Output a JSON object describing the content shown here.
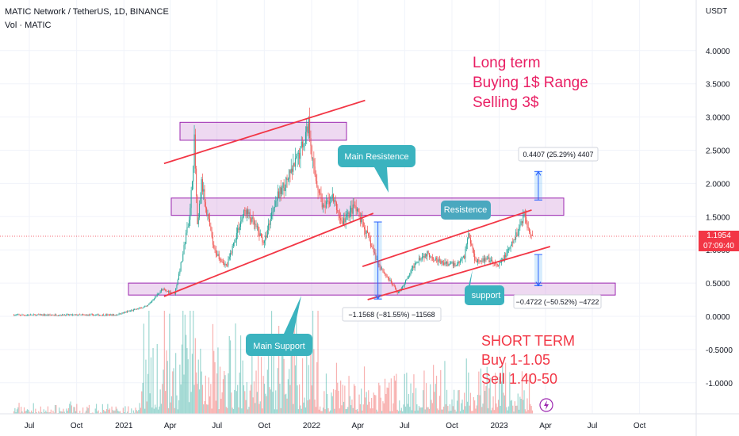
{
  "header": {
    "title": "MATIC Network / TetherUS, 1D, BINANCE",
    "indicator": "Vol · MATIC"
  },
  "price_axis": {
    "currency": "USDT",
    "last_price": "1.1954",
    "countdown": "07:09:40",
    "up_color": "#26a69a",
    "down_color": "#ef5350",
    "accent_color": "#f23645"
  },
  "annotations": {
    "long_term": [
      "Long term",
      "Buying 1$ Range",
      "Selling 3$"
    ],
    "short_term": [
      "SHORT  TERM",
      "Buy 1-1.05",
      "Sell 1.40-50"
    ],
    "main_resistence": "Main Resistence",
    "resistence": "Resistence",
    "support": "support",
    "main_support": "Main Support",
    "measure_up": "0.4407 (25.29%) 4407",
    "measure_down": "−0.4722 (−50.52%) −4722",
    "measure_drop": "−1.1568 (−81.55%) −11568"
  },
  "chart_data": {
    "type": "candlestick",
    "symbol": "MATIC/USDT",
    "timeframe": "1D",
    "exchange": "BINANCE",
    "x_tick_labels": [
      "Jul",
      "Oct",
      "2021",
      "Apr",
      "Jul",
      "Oct",
      "2022",
      "Apr",
      "Jul",
      "Oct",
      "2023",
      "Apr",
      "Jul",
      "Oct"
    ],
    "y_tick_labels": [
      "4.0000",
      "3.5000",
      "3.0000",
      "2.5000",
      "2.0000",
      "1.5000",
      "1.0000",
      "0.5000",
      "0.0000",
      "-0.5000",
      "-1.0000"
    ],
    "ylim": [
      -1.5,
      4.5
    ],
    "price_path": [
      [
        "2020-06-01",
        0.02
      ],
      [
        "2020-12-15",
        0.02
      ],
      [
        "2021-02-15",
        0.15
      ],
      [
        "2021-03-15",
        0.4
      ],
      [
        "2021-04-10",
        0.35
      ],
      [
        "2021-04-25",
        0.9
      ],
      [
        "2021-05-10",
        1.6
      ],
      [
        "2021-05-18",
        2.65
      ],
      [
        "2021-05-24",
        1.3
      ],
      [
        "2021-06-01",
        2.0
      ],
      [
        "2021-06-25",
        1.0
      ],
      [
        "2021-07-20",
        0.75
      ],
      [
        "2021-08-10",
        1.3
      ],
      [
        "2021-08-25",
        1.6
      ],
      [
        "2021-09-10",
        1.4
      ],
      [
        "2021-10-01",
        1.1
      ],
      [
        "2021-10-20",
        1.7
      ],
      [
        "2021-11-10",
        2.0
      ],
      [
        "2021-11-25",
        2.2
      ],
      [
        "2021-12-10",
        2.5
      ],
      [
        "2021-12-27",
        2.9
      ],
      [
        "2022-01-05",
        2.2
      ],
      [
        "2022-01-25",
        1.6
      ],
      [
        "2022-02-10",
        1.8
      ],
      [
        "2022-03-01",
        1.4
      ],
      [
        "2022-03-25",
        1.65
      ],
      [
        "2022-04-15",
        1.3
      ],
      [
        "2022-05-10",
        0.8
      ],
      [
        "2022-06-18",
        0.35
      ],
      [
        "2022-07-05",
        0.55
      ],
      [
        "2022-07-25",
        0.85
      ],
      [
        "2022-08-15",
        0.95
      ],
      [
        "2022-09-10",
        0.8
      ],
      [
        "2022-10-10",
        0.78
      ],
      [
        "2022-10-25",
        0.9
      ],
      [
        "2022-11-02",
        1.25
      ],
      [
        "2022-11-15",
        0.85
      ],
      [
        "2022-12-10",
        0.85
      ],
      [
        "2022-12-30",
        0.75
      ],
      [
        "2023-01-20",
        1.0
      ],
      [
        "2023-02-05",
        1.25
      ],
      [
        "2023-02-18",
        1.55
      ],
      [
        "2023-02-25",
        1.35
      ],
      [
        "2023-03-08",
        1.2
      ]
    ],
    "horizontal_zones": [
      {
        "from": 2.65,
        "to": 2.92
      },
      {
        "from": 1.52,
        "to": 1.78
      },
      {
        "from": 0.32,
        "to": 0.5
      }
    ],
    "trendlines": [
      {
        "from": [
          "2021-03-20",
          2.3
        ],
        "to": [
          "2022-04-15",
          3.25
        ]
      },
      {
        "from": [
          "2021-03-20",
          0.3
        ],
        "to": [
          "2022-05-01",
          1.55
        ]
      },
      {
        "from": [
          "2022-04-10",
          0.75
        ],
        "to": [
          "2023-03-05",
          1.6
        ]
      },
      {
        "from": [
          "2022-04-20",
          0.25
        ],
        "to": [
          "2023-04-10",
          1.05
        ]
      }
    ],
    "measures": [
      {
        "date": "2022-05-10",
        "from": 1.42,
        "to": 0.26
      },
      {
        "date": "2023-03-18",
        "from": 1.75,
        "to": 2.18
      },
      {
        "date": "2023-03-18",
        "from": 0.93,
        "to": 0.46
      }
    ]
  }
}
